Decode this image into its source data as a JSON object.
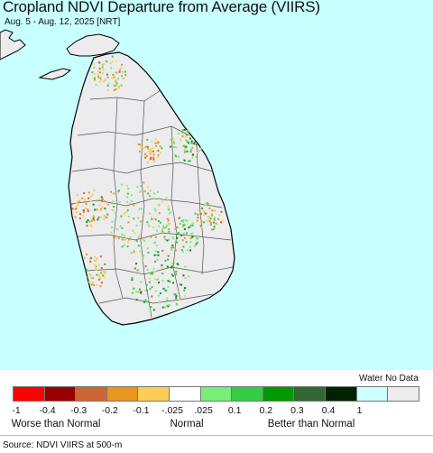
{
  "title": "Cropland NDVI Departure from Average (VIIRS)",
  "subtitle": "Aug. 5 - Aug. 12, 2025 [NRT]",
  "legend": {
    "water_label": "Water No Data",
    "swatches": [
      {
        "color": "#ff0000"
      },
      {
        "color": "#990000"
      },
      {
        "color": "#cc6633"
      },
      {
        "color": "#e8961e"
      },
      {
        "color": "#ffcc55"
      },
      {
        "color": "#ffffff"
      },
      {
        "color": "#77ee77"
      },
      {
        "color": "#33cc44"
      },
      {
        "color": "#009900"
      },
      {
        "color": "#336633"
      },
      {
        "color": "#002200"
      },
      {
        "color": "#ccffff"
      },
      {
        "color": "#ececee"
      }
    ],
    "ticks": [
      "-1",
      "-0.4",
      "-0.3",
      "-0.2",
      "-0.1",
      "-.025",
      ".025",
      "0.1",
      "0.2",
      "0.3",
      "0.4",
      "1"
    ],
    "categories": {
      "worse": "Worse than Normal",
      "normal": "Normal",
      "better": "Better than Normal"
    }
  },
  "source": "Source: NDVI VIIRS at 500-m",
  "colors": {
    "water": "#c8ffff",
    "land": "#ececee",
    "boundary": "#555555",
    "coast": "#000000"
  }
}
